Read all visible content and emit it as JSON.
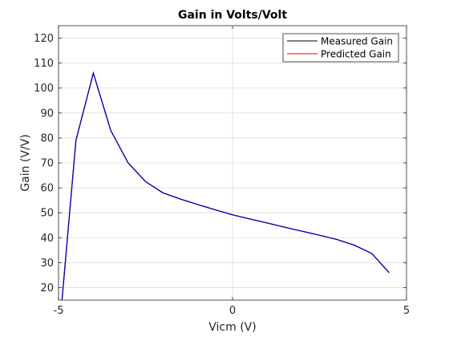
{
  "chart_data": {
    "type": "line",
    "title": "Gain in Volts/Volt",
    "xlabel": "Vicm (V)",
    "ylabel": "Gain (V/V)",
    "xlim": [
      -5,
      5
    ],
    "ylim": [
      15,
      125
    ],
    "xticks": [
      -5,
      0,
      5
    ],
    "yticks": [
      20,
      30,
      40,
      50,
      60,
      70,
      80,
      90,
      100,
      110,
      120
    ],
    "grid": true,
    "legend_position": "top-right",
    "series": [
      {
        "name": "Measured Gain",
        "color": "#000000",
        "x": [
          -4.9,
          -4.5,
          -4.0,
          -3.5,
          -3.0,
          -2.5,
          -2.0,
          -1.5,
          -1.0,
          -0.5,
          0.0,
          0.5,
          1.0,
          1.5,
          2.0,
          2.5,
          3.0,
          3.5,
          4.0,
          4.5
        ],
        "y": [
          15,
          79,
          106,
          83,
          70,
          62.5,
          58,
          55.5,
          53.3,
          51.2,
          49.2,
          47.5,
          45.9,
          44.2,
          42.6,
          41.0,
          39.3,
          37.0,
          33.7,
          26.0
        ]
      },
      {
        "name": "Predicted Gain",
        "color": "#ff0000",
        "x": [
          -4.9,
          -4.5,
          -4.0,
          -3.5,
          -3.0,
          -2.5,
          -2.0,
          -1.5,
          -1.0,
          -0.5,
          0.0,
          0.5,
          1.0,
          1.5,
          2.0,
          2.5,
          3.0,
          3.5,
          4.0,
          4.5
        ],
        "y": [
          15,
          79,
          106,
          83,
          70,
          62.5,
          58,
          55.5,
          53.3,
          51.2,
          49.2,
          47.5,
          45.9,
          44.2,
          42.6,
          41.0,
          39.3,
          37.0,
          33.7,
          26.0
        ]
      }
    ],
    "overlay_color": "#0000cc"
  }
}
